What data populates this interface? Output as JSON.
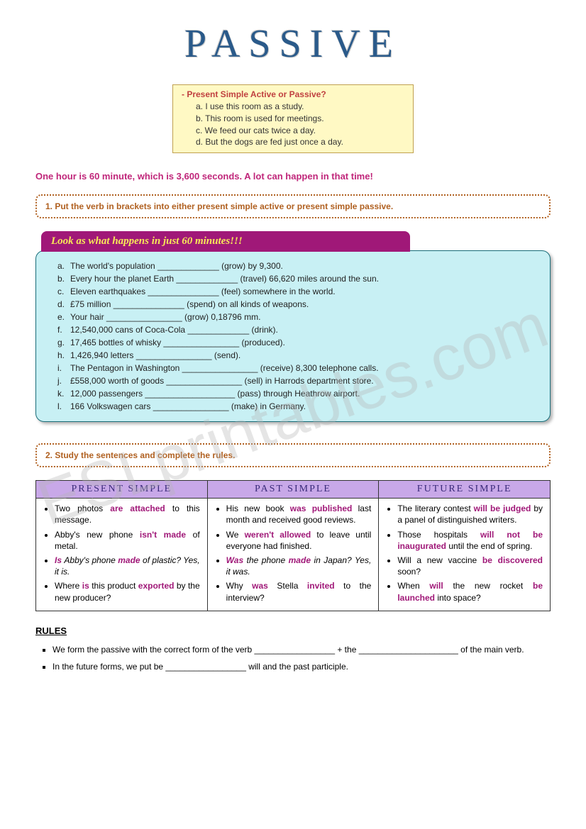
{
  "title": "PASSIVE",
  "watermark": "ESLprintables.com",
  "exampleBox": {
    "header": "-    Present Simple Active or Passive?",
    "items": [
      "a.    I use this room as a study.",
      "b.    This room is used for meetings.",
      "c.    We feed our cats twice a day.",
      "d.    But the dogs are fed just once a day."
    ]
  },
  "intro": "One hour is 60 minute, which is 3,600 seconds. A lot can happen in that time!",
  "instruction1": "1.  Put the verb in brackets into either present simple active or present simple passive.",
  "ex1": {
    "header": "Look as what happens in just 60 minutes!!!",
    "items": [
      {
        "l": "a.",
        "t": "The world's population _____________ (grow) by 9,300."
      },
      {
        "l": "b.",
        "t": "Every hour the planet Earth _____________ (travel) 66,620 miles around the sun."
      },
      {
        "l": "c.",
        "t": "Eleven earthquakes _______________ (feel) somewhere in the world."
      },
      {
        "l": "d.",
        "t": "£75 million _______________ (spend) on all kinds of weapons."
      },
      {
        "l": "e.",
        "t": "Your hair ________________ (grow) 0,18796 mm."
      },
      {
        "l": "f.",
        "t": "12,540,000 cans of Coca-Cola _____________ (drink)."
      },
      {
        "l": "g.",
        "t": "17,465 bottles of whisky ________________ (produced)."
      },
      {
        "l": "h.",
        "t": "1,426,940 letters ________________ (send)."
      },
      {
        "l": "i.",
        "t": "The Pentagon in Washington ________________ (receive) 8,300 telephone calls."
      },
      {
        "l": "j.",
        "t": "£558,000 worth of goods ________________ (sell) in Harrods department store."
      },
      {
        "l": "k.",
        "t": "12,000 passengers ___________________ (pass) through Heathrow airport."
      },
      {
        "l": "l.",
        "t": "166 Volkswagen cars ________________ (make) in Germany."
      }
    ]
  },
  "instruction2": "2.  Study the sentences and complete the rules.",
  "tenseTable": {
    "headers": [
      "PRESENT SIMPLE",
      "PAST SIMPLE",
      "FUTURE SIMPLE"
    ]
  },
  "rulesHeading": "RULES",
  "rules": [
    "We form the passive with the correct form of the verb _________________ + the _____________________ of the main verb.",
    "In the future forms, we put be _________________ will and the past participle."
  ]
}
